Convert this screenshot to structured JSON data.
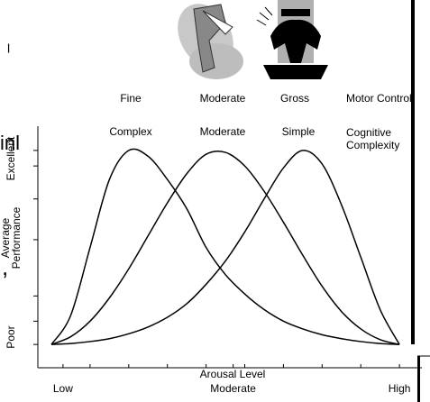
{
  "chart_data": {
    "type": "line",
    "x": [
      0,
      0.5,
      1,
      1.5,
      2,
      2.5,
      3,
      3.5,
      4,
      4.5,
      5,
      5.5,
      6,
      6.5,
      7,
      7.5,
      8,
      8.5,
      9
    ],
    "series": [
      {
        "color": "#000000",
        "values": [
          0,
          1.5,
          5,
          8.5,
          10,
          9.7,
          8.5,
          7,
          5,
          3.6,
          2.6,
          1.8,
          1.2,
          0.8,
          0.5,
          0.3,
          0.15,
          0.05,
          0
        ]
      },
      {
        "color": "#000000",
        "values": [
          0,
          0.4,
          1.2,
          2.4,
          3.9,
          5.6,
          7.3,
          8.8,
          9.8,
          9.9,
          9.2,
          7.9,
          6.3,
          4.6,
          3,
          1.7,
          0.8,
          0.25,
          0
        ]
      },
      {
        "color": "#000000",
        "values": [
          0,
          0.05,
          0.15,
          0.3,
          0.55,
          0.9,
          1.4,
          2.1,
          3.1,
          4.3,
          5.8,
          7.5,
          9.1,
          10,
          9.3,
          7.2,
          4.5,
          1.8,
          0
        ]
      }
    ],
    "xlim": [
      -0.35,
      9.58
    ],
    "ylim": [
      -1.2,
      11.25
    ],
    "xlabel": "Arousal Level",
    "xticks": [
      {
        "value": 0.3,
        "label": "Low"
      },
      {
        "value": 4.7,
        "label": "Moderate"
      },
      {
        "value": 9,
        "label": "High"
      }
    ],
    "x_minor_ticks": [
      1,
      2,
      3,
      4,
      5,
      6,
      7,
      8
    ],
    "yticks": [
      {
        "value": 9.2,
        "label": "Excellent"
      },
      {
        "value": 5.4,
        "label": "Average Performance"
      },
      {
        "value": 0,
        "label": "Poor"
      }
    ],
    "y_minor_ticks": [
      10,
      7.5,
      2.5,
      1.2
    ],
    "motor_labels": [
      "Fine",
      "Moderate",
      "Gross"
    ],
    "motor_title": "Motor Control",
    "cognitive_labels": [
      "Complex",
      "Moderate",
      "Simple"
    ],
    "cognitive_title": "Cognitive Complexity",
    "slide_text_fragments": [
      "l",
      "inl",
      ","
    ]
  }
}
